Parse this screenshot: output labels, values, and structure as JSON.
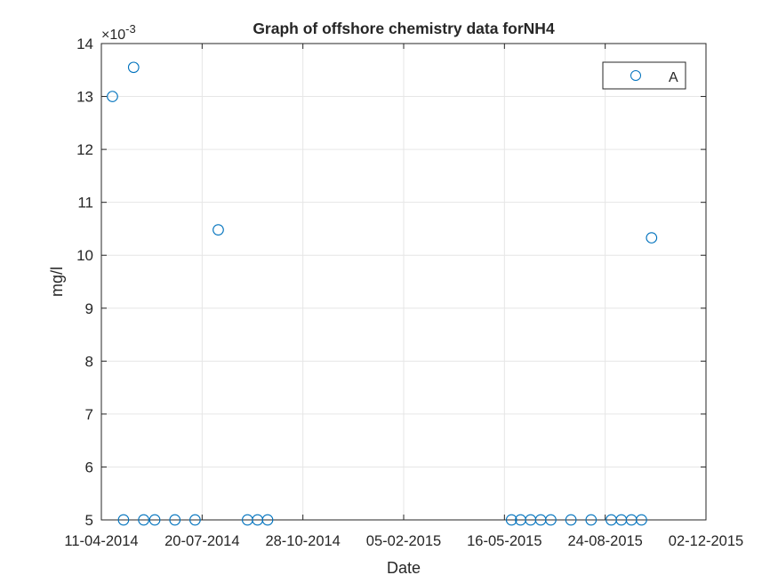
{
  "chart_data": {
    "type": "scatter",
    "title": "Graph of offshore chemistry data forNH4",
    "xlabel": "Date",
    "ylabel": "mg/l",
    "y_exponent_label": "×10",
    "y_exponent_power": "-3",
    "ylim": [
      0.005,
      0.014
    ],
    "y_ticks": [
      0.005,
      0.006,
      0.007,
      0.008,
      0.009,
      0.01,
      0.011,
      0.012,
      0.013,
      0.014
    ],
    "y_tick_labels": [
      "5",
      "6",
      "7",
      "8",
      "9",
      "10",
      "11",
      "12",
      "13",
      "14"
    ],
    "xlim": [
      "2014-04-11",
      "2015-12-02"
    ],
    "x_ticks": [
      "2014-04-11",
      "2014-07-20",
      "2014-10-28",
      "2015-02-05",
      "2015-05-16",
      "2015-08-24",
      "2015-12-02"
    ],
    "x_tick_labels": [
      "11-04-2014",
      "20-07-2014",
      "28-10-2014",
      "05-02-2015",
      "16-05-2015",
      "24-08-2015",
      "02-12-2015"
    ],
    "grid": true,
    "legend": "top-right",
    "marker": "open-circle",
    "series": [
      {
        "name": "A",
        "color": "#0072BD",
        "points": [
          {
            "x": "2014-04-22",
            "y": 0.013
          },
          {
            "x": "2014-05-03",
            "y": 0.005
          },
          {
            "x": "2014-05-13",
            "y": 0.01355
          },
          {
            "x": "2014-05-23",
            "y": 0.005
          },
          {
            "x": "2014-06-03",
            "y": 0.005
          },
          {
            "x": "2014-06-23",
            "y": 0.005
          },
          {
            "x": "2014-07-13",
            "y": 0.005
          },
          {
            "x": "2014-08-05",
            "y": 0.01048
          },
          {
            "x": "2014-09-03",
            "y": 0.005
          },
          {
            "x": "2014-09-13",
            "y": 0.005
          },
          {
            "x": "2014-09-23",
            "y": 0.005
          },
          {
            "x": "2015-05-23",
            "y": 0.005
          },
          {
            "x": "2015-06-01",
            "y": 0.005
          },
          {
            "x": "2015-06-11",
            "y": 0.005
          },
          {
            "x": "2015-06-21",
            "y": 0.005
          },
          {
            "x": "2015-07-01",
            "y": 0.005
          },
          {
            "x": "2015-07-21",
            "y": 0.005
          },
          {
            "x": "2015-08-10",
            "y": 0.005
          },
          {
            "x": "2015-08-30",
            "y": 0.005
          },
          {
            "x": "2015-09-09",
            "y": 0.005
          },
          {
            "x": "2015-09-19",
            "y": 0.005
          },
          {
            "x": "2015-09-29",
            "y": 0.005
          },
          {
            "x": "2015-10-09",
            "y": 0.01033
          }
        ]
      }
    ]
  }
}
